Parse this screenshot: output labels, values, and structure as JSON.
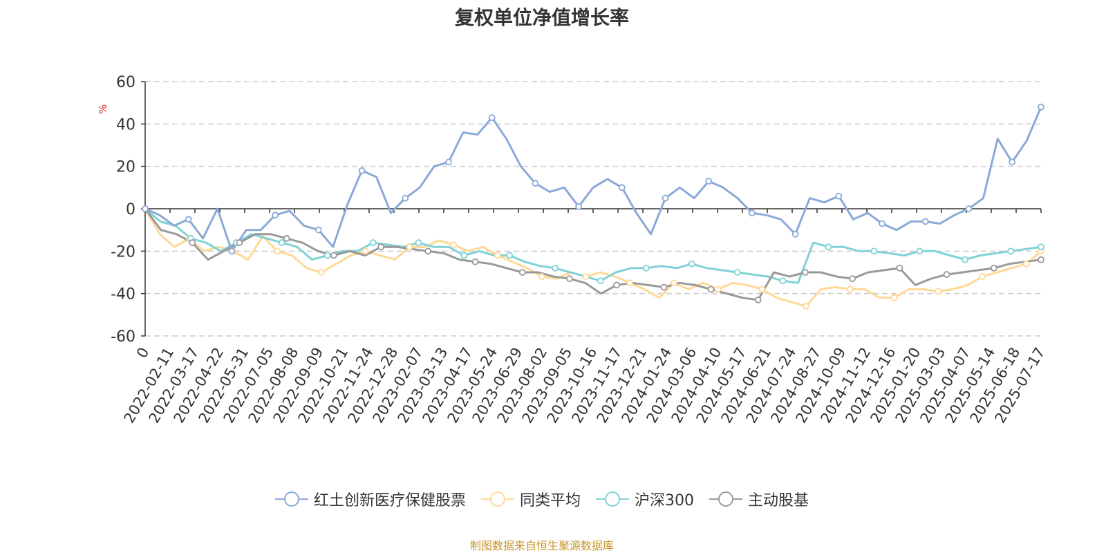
{
  "title": "复权单位净值增长率",
  "source_note": "制图数据来自恒生聚源数据库",
  "colors": {
    "fund": "#8aa9d8",
    "peer_avg": "#ffd896",
    "hs300": "#7fd2d6",
    "active_equity": "#999999",
    "axis_unit": "#e02020",
    "source_text": "#c8962a"
  },
  "chart_data": {
    "type": "line",
    "title": "复权单位净值增长率",
    "ylabel": "%",
    "ylim": [
      -60,
      60
    ],
    "yticks": [
      -60,
      -40,
      -20,
      0,
      20,
      40,
      60
    ],
    "grid": true,
    "legend_position": "bottom",
    "x_tick_labels": [
      "0",
      "2022-02-11",
      "2022-03-17",
      "2022-04-22",
      "2022-05-31",
      "2022-07-05",
      "2022-08-08",
      "2022-09-09",
      "2022-10-21",
      "2022-11-24",
      "2022-12-28",
      "2023-02-07",
      "2023-03-13",
      "2023-04-17",
      "2023-05-24",
      "2023-06-29",
      "2023-08-02",
      "2023-09-05",
      "2023-10-16",
      "2023-11-17",
      "2023-12-21",
      "2024-01-24",
      "2024-03-06",
      "2024-04-10",
      "2024-05-17",
      "2024-06-21",
      "2024-07-24",
      "2024-08-27",
      "2024-10-09",
      "2024-11-12",
      "2024-12-16",
      "2025-01-20",
      "2025-03-03",
      "2025-04-07",
      "2025-05-14",
      "2025-06-18",
      "2025-07-17"
    ],
    "series": [
      {
        "name": "红土创新医疗保健股票",
        "values": [
          0,
          -3,
          -8,
          -5,
          -14,
          0,
          -20,
          -10,
          -10,
          -3,
          -1,
          -8,
          -10,
          -18,
          2,
          18,
          15,
          -2,
          5,
          10,
          20,
          22,
          36,
          35,
          43,
          33,
          20,
          12,
          8,
          10,
          1,
          10,
          14,
          10,
          -2,
          -12,
          5,
          10,
          5,
          13,
          10,
          5,
          -2,
          -3,
          -5,
          -12,
          5,
          3,
          6,
          -5,
          -2,
          -7,
          -10,
          -6,
          -6,
          -7,
          -3,
          0,
          5,
          33,
          22,
          32,
          48
        ]
      },
      {
        "name": "同类平均",
        "values": [
          0,
          -12,
          -18,
          -14,
          -20,
          -18,
          -20,
          -24,
          -13,
          -20,
          -22,
          -28,
          -30,
          -26,
          -22,
          -20,
          -22,
          -24,
          -18,
          -18,
          -15,
          -17,
          -20,
          -18,
          -22,
          -25,
          -28,
          -32,
          -33,
          -30,
          -32,
          -30,
          -32,
          -35,
          -38,
          -42,
          -35,
          -38,
          -35,
          -38,
          -35,
          -36,
          -38,
          -42,
          -44,
          -46,
          -38,
          -37,
          -38,
          -38,
          -42,
          -42,
          -38,
          -38,
          -39,
          -38,
          -36,
          -32,
          -30,
          -28,
          -26,
          -20
        ]
      },
      {
        "name": "沪深300",
        "values": [
          0,
          -6,
          -8,
          -14,
          -16,
          -20,
          -16,
          -12,
          -14,
          -16,
          -18,
          -24,
          -22,
          -20,
          -20,
          -16,
          -17,
          -18,
          -16,
          -18,
          -18,
          -22,
          -20,
          -22,
          -22,
          -25,
          -27,
          -28,
          -30,
          -32,
          -34,
          -30,
          -28,
          -28,
          -27,
          -28,
          -26,
          -28,
          -29,
          -30,
          -31,
          -32,
          -34,
          -35,
          -16,
          -18,
          -18,
          -20,
          -20,
          -21,
          -22,
          -20,
          -20,
          -22,
          -24,
          -22,
          -21,
          -20,
          -19,
          -18
        ]
      },
      {
        "name": "主动股基",
        "values": [
          0,
          -10,
          -12,
          -16,
          -24,
          -20,
          -16,
          -12,
          -12,
          -14,
          -16,
          -20,
          -22,
          -20,
          -22,
          -18,
          -18,
          -19,
          -20,
          -21,
          -24,
          -25,
          -26,
          -28,
          -30,
          -30,
          -32,
          -33,
          -35,
          -40,
          -36,
          -35,
          -36,
          -37,
          -35,
          -36,
          -38,
          -40,
          -42,
          -43,
          -30,
          -32,
          -30,
          -30,
          -32,
          -33,
          -30,
          -29,
          -28,
          -36,
          -33,
          -31,
          -30,
          -29,
          -28,
          -26,
          -25,
          -24
        ]
      }
    ]
  }
}
